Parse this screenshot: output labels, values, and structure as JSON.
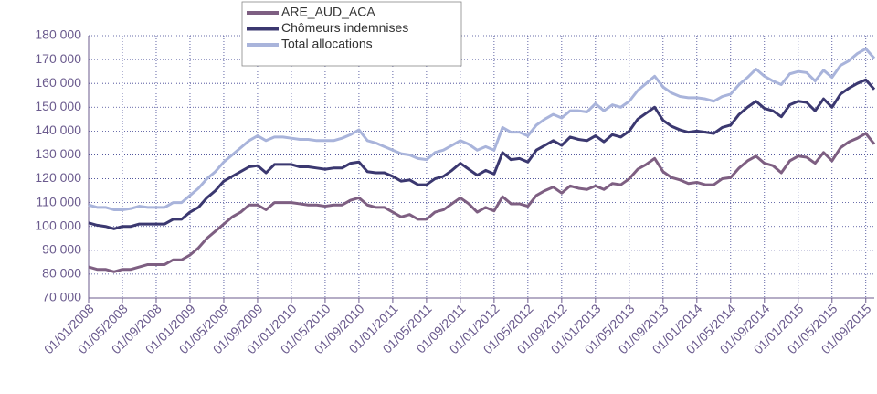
{
  "chart_data": {
    "type": "line",
    "categories": [
      "01/01/2008",
      null,
      null,
      null,
      "01/05/2008",
      null,
      null,
      null,
      "01/09/2008",
      null,
      null,
      null,
      "01/01/2009",
      null,
      null,
      null,
      "01/05/2009",
      null,
      null,
      null,
      "01/09/2009",
      null,
      null,
      null,
      "01/01/2010",
      null,
      null,
      null,
      "01/05/2010",
      null,
      null,
      null,
      "01/09/2010",
      null,
      null,
      null,
      "01/01/2011",
      null,
      null,
      null,
      "01/05/2011",
      null,
      null,
      null,
      "01/09/2011",
      null,
      null,
      null,
      "01/01/2012",
      null,
      null,
      null,
      "01/05/2012",
      null,
      null,
      null,
      "01/09/2012",
      null,
      null,
      null,
      "01/01/2013",
      null,
      null,
      null,
      "01/05/2013",
      null,
      null,
      null,
      "01/09/2013",
      null,
      null,
      null,
      "01/01/2014",
      null,
      null,
      null,
      "01/05/2014",
      null,
      null,
      null,
      "01/09/2014",
      null,
      null,
      null,
      "01/01/2015",
      null,
      null,
      null,
      "01/05/2015",
      null,
      null,
      null,
      "01/09/2015",
      null
    ],
    "series": [
      {
        "name": "ARE_AUD_ACA",
        "color": "#7e5f82",
        "values": [
          83000,
          82000,
          82000,
          81000,
          82000,
          82000,
          83000,
          84000,
          84000,
          84000,
          86000,
          86000,
          88000,
          91000,
          95000,
          98000,
          101000,
          104000,
          106000,
          109000,
          109000,
          107000,
          110000,
          110000,
          110000,
          109500,
          109000,
          109000,
          108500,
          109000,
          109000,
          111000,
          112000,
          109000,
          108000,
          108000,
          106000,
          104000,
          105000,
          103000,
          103000,
          106000,
          107000,
          109500,
          112000,
          109500,
          106000,
          108000,
          106500,
          112500,
          109500,
          109500,
          108500,
          113000,
          115000,
          116500,
          114000,
          117000,
          116000,
          115500,
          117000,
          115500,
          118000,
          117500,
          120000,
          124000,
          126000,
          128500,
          123000,
          120500,
          119500,
          118000,
          118500,
          117500,
          117500,
          120000,
          120500,
          124500,
          127500,
          129500,
          126500,
          125500,
          122500,
          127500,
          129500,
          129000,
          126500,
          131000,
          127500,
          133000,
          135500,
          137000,
          139000,
          134500
        ]
      },
      {
        "name": "Chômeurs indemnises",
        "color": "#3b3870",
        "values": [
          101500,
          100500,
          100000,
          99000,
          100000,
          100000,
          101000,
          101000,
          101000,
          101000,
          103000,
          103000,
          106000,
          108000,
          112000,
          115000,
          119000,
          121000,
          123000,
          125000,
          125500,
          122500,
          126000,
          126000,
          126000,
          125000,
          125000,
          124500,
          124000,
          124500,
          124500,
          126500,
          127000,
          123000,
          122500,
          122500,
          121000,
          119000,
          119500,
          117500,
          117500,
          120000,
          121000,
          123500,
          126500,
          124000,
          121500,
          123500,
          122000,
          131000,
          128000,
          128500,
          127000,
          132000,
          134000,
          136000,
          134000,
          137500,
          136500,
          136000,
          138000,
          135500,
          138500,
          137500,
          140000,
          145000,
          147500,
          150000,
          144500,
          142000,
          140500,
          139500,
          140000,
          139500,
          139000,
          141500,
          142500,
          147000,
          150000,
          152500,
          149500,
          148500,
          146000,
          151000,
          152500,
          152000,
          148500,
          153500,
          150000,
          155500,
          158000,
          160000,
          161500,
          157500
        ]
      },
      {
        "name": "Total allocations",
        "color": "#a9b4db",
        "values": [
          109000,
          108000,
          108000,
          107000,
          107000,
          107500,
          108500,
          108000,
          108000,
          108000,
          110000,
          110000,
          113000,
          116000,
          120000,
          123000,
          127000,
          130000,
          133000,
          136000,
          138000,
          136000,
          137500,
          137500,
          137000,
          136500,
          136500,
          136000,
          136000,
          136000,
          137000,
          138500,
          140500,
          136000,
          135000,
          133500,
          132000,
          130500,
          130000,
          128500,
          128000,
          131000,
          132000,
          134000,
          136000,
          134500,
          132000,
          133500,
          132000,
          141500,
          139500,
          139500,
          138000,
          142500,
          145000,
          147000,
          145500,
          148500,
          148500,
          148000,
          151500,
          148500,
          151000,
          150000,
          152500,
          157000,
          160000,
          163000,
          158500,
          156000,
          154500,
          154000,
          154000,
          153500,
          152500,
          154500,
          155500,
          159500,
          162500,
          166000,
          163000,
          161000,
          159500,
          164000,
          165000,
          164500,
          161000,
          165500,
          162500,
          167500,
          169500,
          172500,
          174500,
          170500
        ]
      }
    ],
    "ylim": [
      70000,
      180000
    ],
    "yticks": [
      {
        "value": 70000,
        "label": "70 000"
      },
      {
        "value": 80000,
        "label": "80 000"
      },
      {
        "value": 90000,
        "label": "90 000"
      },
      {
        "value": 100000,
        "label": "100 000"
      },
      {
        "value": 110000,
        "label": "110 000"
      },
      {
        "value": 120000,
        "label": "120 000"
      },
      {
        "value": 130000,
        "label": "130 000"
      },
      {
        "value": 140000,
        "label": "140 000"
      },
      {
        "value": 150000,
        "label": "150 000"
      },
      {
        "value": 160000,
        "label": "160 000"
      },
      {
        "value": 170000,
        "label": "170 000"
      },
      {
        "value": 180000,
        "label": "180 000"
      }
    ],
    "grid": true
  }
}
